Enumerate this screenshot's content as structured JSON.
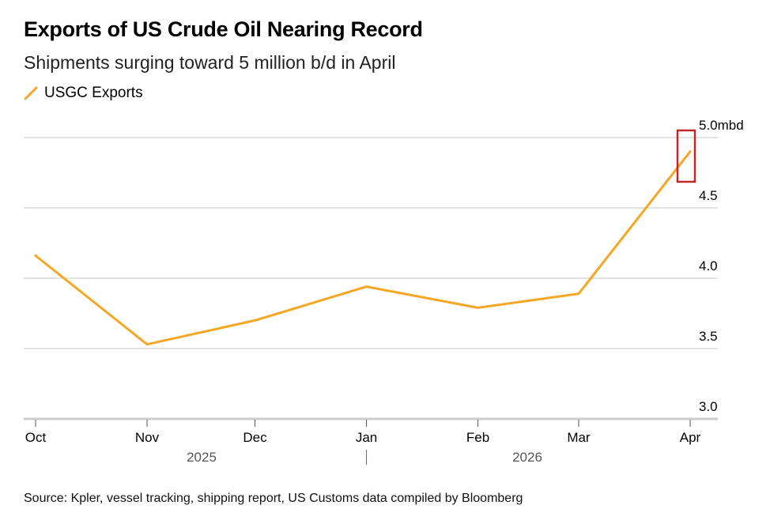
{
  "chart_data": {
    "type": "line",
    "title": "Exports of US Crude Oil Nearing Record",
    "subtitle": "Shipments surging toward 5 million b/d in April",
    "source": "Source: Kpler, vessel tracking, shipping report, US Customs data compiled by Bloomberg",
    "ylim": [
      3.0,
      5.0
    ],
    "yticks": [
      3.0,
      3.5,
      4.0,
      4.5,
      5.0
    ],
    "ytick_labels": [
      "3.0",
      "3.5",
      "4.0",
      "4.5",
      "5.0mbd"
    ],
    "xticks": [
      "2025-10-01",
      "2025-11-01",
      "2025-12-01",
      "2026-01-01",
      "2026-02-01",
      "2026-03-01",
      "2026-04-01"
    ],
    "xtick_labels": [
      "Oct",
      "Nov",
      "Dec",
      "Jan",
      "Feb",
      "Mar",
      "Apr"
    ],
    "year_labels": [
      "2025",
      "2026"
    ],
    "grid": true,
    "legend_position": "top-left",
    "highlight": {
      "x": "2026-04-01",
      "color": "#c0272d"
    },
    "series": [
      {
        "name": "USGC Exports",
        "color": "#f5a623",
        "x": [
          "2025-10-01",
          "2025-11-01",
          "2025-12-01",
          "2026-01-01",
          "2026-02-01",
          "2026-03-01",
          "2026-04-01"
        ],
        "values": [
          4.16,
          3.53,
          3.7,
          3.94,
          3.79,
          3.89,
          4.9
        ]
      }
    ]
  }
}
